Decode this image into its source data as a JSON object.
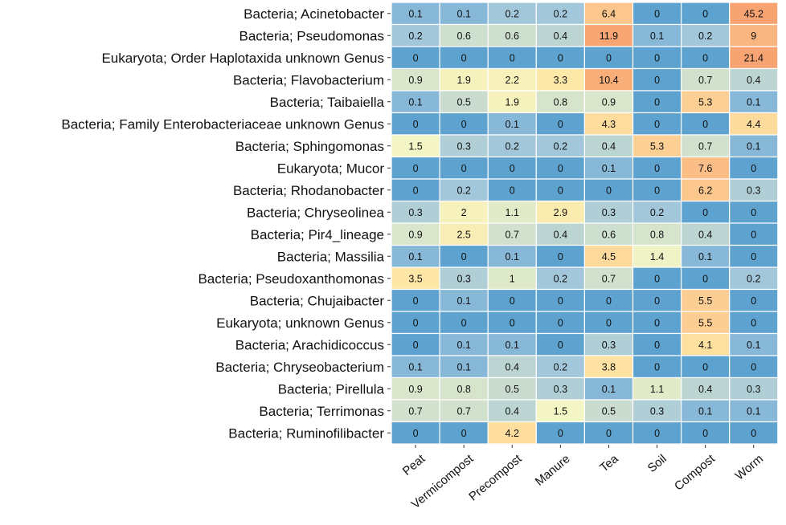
{
  "chart_data": {
    "type": "heatmap",
    "rows": [
      "Bacteria; Acinetobacter",
      "Bacteria; Pseudomonas",
      "Eukaryota; Order Haplotaxida unknown Genus",
      "Bacteria; Flavobacterium",
      "Bacteria; Taibaiella",
      "Bacteria; Family Enterobacteriaceae unknown Genus",
      "Bacteria; Sphingomonas",
      "Eukaryota; Mucor",
      "Bacteria; Rhodanobacter",
      "Bacteria; Chryseolinea",
      "Bacteria; Pir4_lineage",
      "Bacteria; Massilia",
      "Bacteria; Pseudoxanthomonas",
      "Bacteria; Chujaibacter",
      "Eukaryota;  unknown Genus",
      "Bacteria; Arachidicoccus",
      "Bacteria; Chryseobacterium",
      "Bacteria; Pirellula",
      "Bacteria; Terrimonas",
      "Bacteria; Ruminofilibacter"
    ],
    "columns": [
      "Peat",
      "Vermicompost",
      "Precompost",
      "Manure",
      "Tea",
      "Soil",
      "Compost",
      "Worm"
    ],
    "values": [
      [
        0.1,
        0.1,
        0.2,
        0.2,
        6.4,
        0,
        0,
        45.2
      ],
      [
        0.2,
        0.6,
        0.6,
        0.4,
        11.9,
        0.1,
        0.2,
        9
      ],
      [
        0,
        0,
        0,
        0,
        0,
        0,
        0,
        21.4
      ],
      [
        0.9,
        1.9,
        2.2,
        3.3,
        10.4,
        0,
        0.7,
        0.4
      ],
      [
        0.1,
        0.5,
        1.9,
        0.8,
        0.9,
        0,
        5.3,
        0.1
      ],
      [
        0,
        0,
        0.1,
        0,
        4.3,
        0,
        0,
        4.4
      ],
      [
        1.5,
        0.3,
        0.2,
        0.2,
        0.4,
        5.3,
        0.7,
        0.1
      ],
      [
        0,
        0,
        0,
        0,
        0.1,
        0,
        7.6,
        0
      ],
      [
        0,
        0.2,
        0,
        0,
        0,
        0,
        6.2,
        0.3
      ],
      [
        0.3,
        2,
        1.1,
        2.9,
        0.3,
        0.2,
        0,
        0
      ],
      [
        0.9,
        2.5,
        0.7,
        0.4,
        0.6,
        0.8,
        0.4,
        0
      ],
      [
        0.1,
        0,
        0.1,
        0,
        4.5,
        1.4,
        0.1,
        0
      ],
      [
        3.5,
        0.3,
        1,
        0.2,
        0.7,
        0,
        0,
        0.2
      ],
      [
        0,
        0.1,
        0,
        0,
        0,
        0,
        5.5,
        0
      ],
      [
        0,
        0,
        0,
        0,
        0,
        0,
        5.5,
        0
      ],
      [
        0,
        0.1,
        0.1,
        0,
        0.3,
        0,
        4.1,
        0.1
      ],
      [
        0.1,
        0.1,
        0.4,
        0.2,
        3.8,
        0,
        0,
        0
      ],
      [
        0.9,
        0.8,
        0.5,
        0.3,
        0.1,
        1.1,
        0.4,
        0.3
      ],
      [
        0.7,
        0.7,
        0.4,
        1.5,
        0.5,
        0.3,
        0.1,
        0.1
      ],
      [
        0,
        0,
        4.2,
        0,
        0,
        0,
        0,
        0
      ]
    ],
    "title": "",
    "xlabel": "",
    "ylabel": "",
    "color_scale": [
      "#5ea3cf",
      "#9dc3dc",
      "#c9dccf",
      "#f3f5c4",
      "#fde6a6",
      "#fcc88e",
      "#f7a472"
    ],
    "grid": false,
    "legend": "none"
  }
}
